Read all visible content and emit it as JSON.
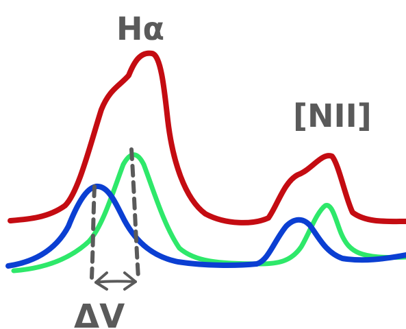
{
  "labels": {
    "h_alpha": "Hα",
    "n_ii": "[NII]",
    "delta_v": "ΔV"
  },
  "colors": {
    "red_curve": "#c40c12",
    "green_curve": "#2ee86a",
    "blue_curve": "#0b3fd2",
    "annotation_gray": "#5a5a5a",
    "background": "#ffffff"
  }
}
